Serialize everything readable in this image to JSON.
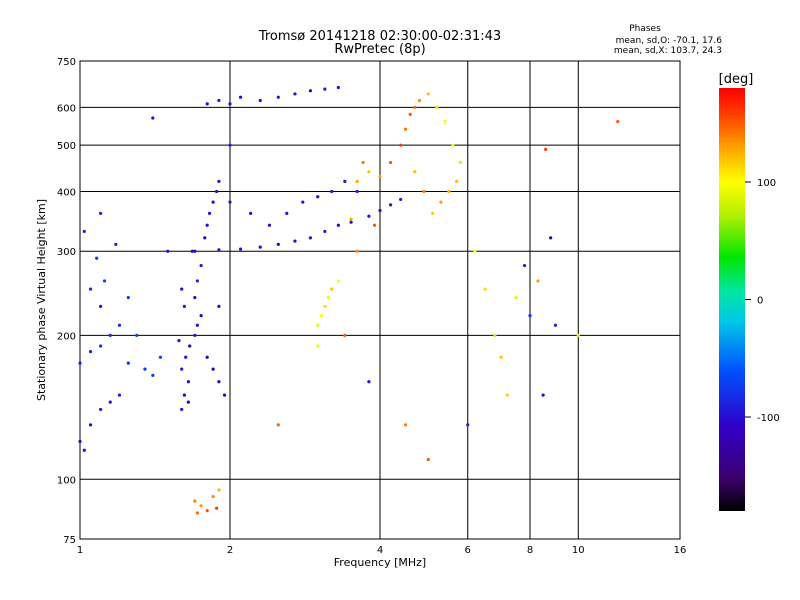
{
  "chart_data": {
    "type": "scatter",
    "title": "Tromsø 20141218 02:30:00-02:31:43",
    "subtitle": "RwPretec (8p)",
    "xlabel": "Frequency [MHz]",
    "ylabel": "Stationary phase Virtual Height [km]",
    "x_scale": "log",
    "y_scale": "log",
    "xlim": [
      1,
      16
    ],
    "ylim": [
      75,
      750
    ],
    "x_ticks": [
      1,
      2,
      4,
      6,
      8,
      10,
      16
    ],
    "x_tick_labels": [
      "1",
      "2",
      "4",
      "6",
      "8",
      "10",
      "16"
    ],
    "y_ticks": [
      75,
      100,
      200,
      300,
      400,
      500,
      600,
      750
    ],
    "y_tick_labels": [
      "75",
      "100",
      "200",
      "300",
      "400",
      "500",
      "600",
      "750"
    ],
    "x_gridlines": [
      2,
      4,
      6,
      8,
      10
    ],
    "y_gridlines": [
      100,
      200,
      300,
      400,
      500,
      600
    ],
    "stats": {
      "heading": "Phases",
      "line1": "mean, sd,O: -70.1, 17.6",
      "line2": "mean, sd,X: 103.7, 24.3"
    },
    "colorbar": {
      "label": "[deg]",
      "range": [
        -180,
        180
      ],
      "ticks": [
        100,
        0,
        -100
      ],
      "tick_labels": [
        "100",
        "0",
        "-100"
      ],
      "colormap": "rainbow (black-purple-blue-cyan-green-yellow-orange-red)"
    },
    "series": [
      {
        "component": "o-mode-low",
        "note": "steep low-frequency echoes",
        "points": [
          [
            1.0,
            120,
            -110
          ],
          [
            1.02,
            115,
            -100
          ],
          [
            1.05,
            130,
            -105
          ],
          [
            1.1,
            140,
            -95
          ],
          [
            1.15,
            145,
            -100
          ],
          [
            1.2,
            150,
            -90
          ],
          [
            1.0,
            175,
            -85
          ],
          [
            1.05,
            185,
            -90
          ],
          [
            1.1,
            190,
            -80
          ],
          [
            1.15,
            200,
            -85
          ],
          [
            1.2,
            210,
            -80
          ],
          [
            1.25,
            240,
            -75
          ],
          [
            1.3,
            200,
            -70
          ],
          [
            1.35,
            170,
            -80
          ],
          [
            1.4,
            165,
            -75
          ],
          [
            1.45,
            180,
            -70
          ],
          [
            1.1,
            230,
            -90
          ],
          [
            1.05,
            250,
            -85
          ],
          [
            1.08,
            290,
            -80
          ],
          [
            1.02,
            330,
            -90
          ],
          [
            1.1,
            360,
            -85
          ],
          [
            1.18,
            310,
            -85
          ],
          [
            1.25,
            175,
            -80
          ],
          [
            1.12,
            260,
            -75
          ]
        ]
      },
      {
        "component": "e-f1-cusp-1p6mhz",
        "note": "dense vertical cluster near 1.6-1.8 MHz",
        "points": [
          [
            1.6,
            140,
            -100
          ],
          [
            1.62,
            150,
            -110
          ],
          [
            1.65,
            160,
            -105
          ],
          [
            1.6,
            170,
            -95
          ],
          [
            1.63,
            180,
            -100
          ],
          [
            1.66,
            190,
            -115
          ],
          [
            1.7,
            200,
            -95
          ],
          [
            1.72,
            210,
            -100
          ],
          [
            1.75,
            220,
            -110
          ],
          [
            1.7,
            240,
            -105
          ],
          [
            1.72,
            260,
            -95
          ],
          [
            1.75,
            280,
            -100
          ],
          [
            1.68,
            300,
            -105
          ],
          [
            1.78,
            320,
            -110
          ],
          [
            1.8,
            340,
            -100
          ],
          [
            1.82,
            360,
            -95
          ],
          [
            1.85,
            380,
            -105
          ],
          [
            1.88,
            400,
            -100
          ],
          [
            1.9,
            420,
            -95
          ],
          [
            1.8,
            180,
            -120
          ],
          [
            1.85,
            170,
            -125
          ],
          [
            1.9,
            160,
            -110
          ],
          [
            1.95,
            150,
            -115
          ],
          [
            1.65,
            145,
            -120
          ],
          [
            1.62,
            230,
            -90
          ],
          [
            1.6,
            250,
            -100
          ],
          [
            1.58,
            195,
            -95
          ],
          [
            1.9,
            230,
            -100
          ]
        ]
      },
      {
        "component": "f-trace-o-mode",
        "note": "main O-mode F-layer trace near 300 km rising toward 400 km",
        "points": [
          [
            1.5,
            300,
            -100
          ],
          [
            1.7,
            300,
            -105
          ],
          [
            1.9,
            302,
            -100
          ],
          [
            2.1,
            303,
            -95
          ],
          [
            2.3,
            306,
            -100
          ],
          [
            2.5,
            310,
            -105
          ],
          [
            2.7,
            315,
            -100
          ],
          [
            2.9,
            320,
            -95
          ],
          [
            3.1,
            330,
            -100
          ],
          [
            3.3,
            340,
            -105
          ],
          [
            3.5,
            345,
            -100
          ],
          [
            3.8,
            355,
            -95
          ],
          [
            4.0,
            365,
            -100
          ],
          [
            4.2,
            375,
            -95
          ],
          [
            4.4,
            385,
            -90
          ],
          [
            2.0,
            380,
            -95
          ],
          [
            2.2,
            360,
            -100
          ],
          [
            2.4,
            340,
            -100
          ],
          [
            2.6,
            360,
            -95
          ],
          [
            2.8,
            380,
            -95
          ],
          [
            3.0,
            390,
            -100
          ],
          [
            3.2,
            400,
            -95
          ],
          [
            3.4,
            420,
            -100
          ],
          [
            3.6,
            400,
            -90
          ]
        ]
      },
      {
        "component": "f-trace-upper",
        "note": "upper echoes near 600-650 km",
        "points": [
          [
            1.8,
            610,
            -100
          ],
          [
            1.9,
            620,
            -95
          ],
          [
            2.0,
            610,
            -100
          ],
          [
            2.1,
            630,
            -105
          ],
          [
            2.3,
            620,
            -100
          ],
          [
            2.5,
            630,
            -95
          ],
          [
            2.7,
            640,
            -100
          ],
          [
            2.9,
            650,
            -105
          ],
          [
            3.1,
            655,
            -100
          ],
          [
            3.3,
            660,
            -95
          ],
          [
            1.4,
            570,
            -100
          ],
          [
            2.0,
            500,
            -95
          ]
        ]
      },
      {
        "component": "x-mode-f-trace",
        "note": "warm-colored X-mode echoes between 3 and 6 MHz",
        "points": [
          [
            3.0,
            210,
            90
          ],
          [
            3.05,
            220,
            100
          ],
          [
            3.1,
            230,
            110
          ],
          [
            3.15,
            240,
            95
          ],
          [
            3.0,
            190,
            105
          ],
          [
            3.2,
            250,
            120
          ],
          [
            3.3,
            260,
            100
          ],
          [
            3.4,
            200,
            150
          ],
          [
            3.5,
            350,
            130
          ],
          [
            3.6,
            420,
            125
          ],
          [
            3.7,
            460,
            140
          ],
          [
            3.8,
            440,
            120
          ],
          [
            4.0,
            430,
            130
          ],
          [
            4.2,
            460,
            150
          ],
          [
            4.4,
            500,
            160
          ],
          [
            4.5,
            540,
            140
          ],
          [
            4.6,
            580,
            150
          ],
          [
            4.7,
            600,
            145
          ],
          [
            4.8,
            620,
            135
          ],
          [
            5.0,
            640,
            120
          ],
          [
            5.2,
            600,
            110
          ],
          [
            5.4,
            560,
            100
          ],
          [
            5.6,
            500,
            95
          ],
          [
            5.8,
            460,
            110
          ],
          [
            5.7,
            420,
            120
          ],
          [
            5.5,
            400,
            125
          ],
          [
            5.3,
            380,
            130
          ],
          [
            5.1,
            360,
            115
          ],
          [
            4.9,
            400,
            140
          ],
          [
            4.7,
            440,
            120
          ],
          [
            3.6,
            300,
            135
          ],
          [
            3.9,
            340,
            150
          ]
        ]
      },
      {
        "component": "e-layer-x",
        "note": "low-height X echoes near 1.8-2 MHz",
        "points": [
          [
            1.7,
            90,
            140
          ],
          [
            1.75,
            88,
            130
          ],
          [
            1.8,
            86,
            150
          ],
          [
            1.85,
            92,
            135
          ],
          [
            1.9,
            95,
            125
          ],
          [
            1.72,
            85,
            145
          ],
          [
            1.88,
            87,
            160
          ]
        ]
      },
      {
        "component": "scattered-noise",
        "note": "sparse points at higher frequencies",
        "points": [
          [
            6.2,
            300,
            100
          ],
          [
            6.5,
            250,
            110
          ],
          [
            7.0,
            180,
            120
          ],
          [
            7.5,
            240,
            90
          ],
          [
            8.0,
            220,
            -80
          ],
          [
            8.5,
            150,
            -100
          ],
          [
            8.8,
            320,
            -110
          ],
          [
            9.0,
            210,
            -90
          ],
          [
            12.0,
            560,
            150
          ],
          [
            8.6,
            490,
            160
          ],
          [
            8.3,
            260,
            130
          ],
          [
            7.2,
            150,
            115
          ],
          [
            5.0,
            110,
            150
          ],
          [
            4.5,
            130,
            140
          ],
          [
            3.8,
            160,
            -100
          ],
          [
            2.5,
            130,
            145
          ],
          [
            10.0,
            200,
            110
          ],
          [
            6.0,
            130,
            -90
          ],
          [
            7.8,
            280,
            -95
          ],
          [
            6.8,
            200,
            80
          ]
        ]
      }
    ]
  }
}
